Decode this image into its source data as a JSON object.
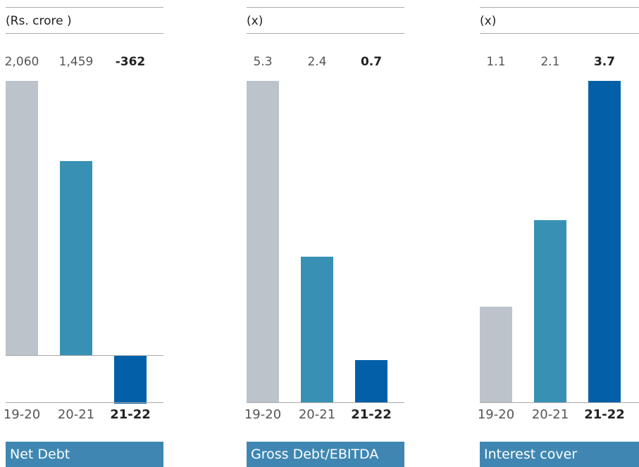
{
  "colors": {
    "bar_prior_1": "#bcc3ca",
    "bar_prior_2": "#3891b5",
    "bar_current": "#0360a8",
    "footer_bg": "#3f87b2",
    "rule": "#a9a9a9"
  },
  "chart_data": [
    {
      "type": "bar",
      "title": "Net Debt",
      "unit_label": "(Rs. crore )",
      "categories": [
        "19-20",
        "20-21",
        "21-22"
      ],
      "values": [
        2060,
        1459,
        -362
      ],
      "value_labels": [
        "2,060",
        "1,459",
        "-362"
      ],
      "highlight_index": 2,
      "grid": false
    },
    {
      "type": "bar",
      "title": "Gross Debt/EBITDA",
      "unit_label": "(x)",
      "categories": [
        "19-20",
        "20-21",
        "21-22"
      ],
      "values": [
        5.3,
        2.4,
        0.7
      ],
      "value_labels": [
        "5.3",
        "2.4",
        "0.7"
      ],
      "highlight_index": 2,
      "grid": false
    },
    {
      "type": "bar",
      "title": "Interest cover",
      "unit_label": "(x)",
      "categories": [
        "19-20",
        "20-21",
        "21-22"
      ],
      "values": [
        1.1,
        2.1,
        3.7
      ],
      "value_labels": [
        "1.1",
        "2.1",
        "3.7"
      ],
      "highlight_index": 2,
      "grid": false
    }
  ]
}
